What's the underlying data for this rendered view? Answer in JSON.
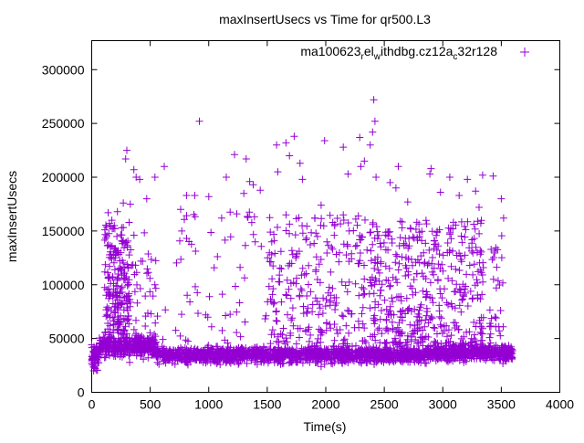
{
  "chart_data": {
    "type": "scatter",
    "title": "maxInsertUsecs vs Time for qr500.L3",
    "xlabel": "Time(s)",
    "ylabel": "maxInsertUsecs",
    "xlim": [
      0,
      4000
    ],
    "ylim": [
      0,
      327000
    ],
    "xticks": [
      0,
      500,
      1000,
      1500,
      2000,
      2500,
      3000,
      3500,
      4000
    ],
    "yticks": [
      0,
      50000,
      100000,
      150000,
      200000,
      250000,
      300000
    ],
    "grid": false,
    "legend": {
      "position": "top-right",
      "label_parts": [
        "ma100623",
        "r",
        "el",
        "w",
        "ithdbg.cz12a",
        "c",
        "32r128"
      ]
    },
    "color": "#9400d3",
    "marker": "plus",
    "series": [
      {
        "name": "ma100623_rel_withdbg.cz12a_c32r128",
        "outliers": [
          [
            920,
            252000
          ],
          [
            2410,
            272000
          ],
          [
            2420,
            252000
          ],
          [
            2400,
            242000
          ],
          [
            2290,
            237000
          ],
          [
            1730,
            238000
          ],
          [
            1580,
            230000
          ],
          [
            1660,
            232000
          ],
          [
            1990,
            234000
          ],
          [
            2150,
            228000
          ],
          [
            300,
            225000
          ],
          [
            290,
            217000
          ],
          [
            1220,
            221000
          ],
          [
            1320,
            217000
          ],
          [
            2380,
            230000
          ],
          [
            620,
            210000
          ],
          [
            360,
            207000
          ],
          [
            1780,
            213000
          ],
          [
            1690,
            220000
          ],
          [
            2330,
            215000
          ],
          [
            1350,
            196000
          ],
          [
            1440,
            188000
          ],
          [
            1590,
            205000
          ],
          [
            2620,
            210000
          ],
          [
            2430,
            200000
          ],
          [
            3340,
            202000
          ],
          [
            3430,
            201000
          ],
          [
            2190,
            203000
          ],
          [
            2300,
            210000
          ],
          [
            2890,
            203000
          ],
          [
            2900,
            208000
          ],
          [
            3060,
            200000
          ],
          [
            1150,
            200000
          ],
          [
            1800,
            198000
          ],
          [
            2980,
            186000
          ],
          [
            3140,
            183000
          ],
          [
            3210,
            198000
          ],
          [
            3280,
            187000
          ],
          [
            3500,
            180000
          ],
          [
            880,
            183000
          ],
          [
            810,
            183000
          ],
          [
            760,
            170000
          ],
          [
            1000,
            182000
          ],
          [
            1300,
            185000
          ],
          [
            1380,
            193000
          ],
          [
            2600,
            190000
          ],
          [
            2550,
            195000
          ],
          [
            2700,
            177000
          ],
          [
            3310,
            172000
          ],
          [
            3520,
            162000
          ],
          [
            270,
            176000
          ],
          [
            330,
            175000
          ],
          [
            220,
            168000
          ],
          [
            140,
            167000
          ],
          [
            470,
            180000
          ],
          [
            540,
            200000
          ],
          [
            380,
            200000
          ],
          [
            410,
            198000
          ],
          [
            1960,
            174000
          ],
          [
            2060,
            158000
          ],
          [
            2150,
            165000
          ],
          [
            1110,
            162000
          ],
          [
            1240,
            166000
          ],
          [
            2200,
            150000
          ]
        ],
        "clusters": [
          {
            "count": 200,
            "x": [
              110,
              320
            ],
            "y": [
              55000,
              160000
            ]
          },
          {
            "count": 40,
            "x": [
              320,
              560
            ],
            "y": [
              50000,
              150000
            ]
          },
          {
            "count": 60,
            "x": [
              560,
              1500
            ],
            "y": [
              45000,
              170000
            ]
          },
          {
            "count": 260,
            "x": [
              1500,
              2400
            ],
            "y": [
              45000,
              165000
            ]
          },
          {
            "count": 420,
            "x": [
              2400,
              3350
            ],
            "y": [
              45000,
              160000
            ]
          },
          {
            "count": 30,
            "x": [
              3400,
              3520
            ],
            "y": [
              50000,
              150000
            ]
          }
        ],
        "band": [
          {
            "count": 60,
            "x": [
              0,
              60
            ],
            "y_mean": 32000,
            "y_sd": 7000
          },
          {
            "count": 400,
            "x": [
              60,
              550
            ],
            "y_mean": 43000,
            "y_sd": 5000
          },
          {
            "count": 1500,
            "x": [
              550,
              2850
            ],
            "y_mean": 35000,
            "y_sd": 3500
          },
          {
            "count": 550,
            "x": [
              2850,
              3600
            ],
            "y_mean": 37000,
            "y_sd": 3500
          }
        ]
      }
    ]
  }
}
